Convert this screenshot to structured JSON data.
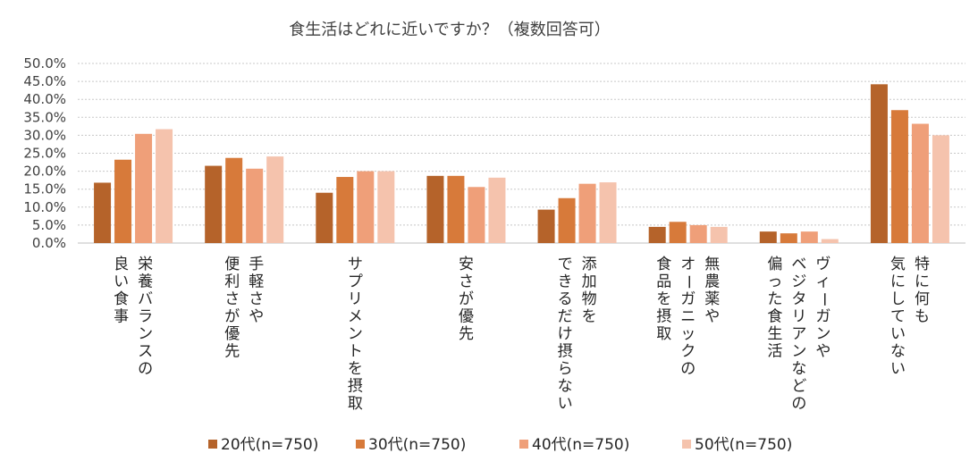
{
  "chart_data": {
    "type": "bar",
    "title": "食生活はどれに近いですか？（複数回答可）",
    "xlabel": "",
    "ylabel": "",
    "ylim": [
      0,
      50
    ],
    "yticks": [
      "0.0%",
      "5.0%",
      "10.0%",
      "15.0%",
      "20.0%",
      "25.0%",
      "30.0%",
      "35.0%",
      "40.0%",
      "45.0%",
      "50.0%"
    ],
    "grid": true,
    "legend_position": "bottom",
    "categories": [
      [
        "栄養バランスの",
        "良い食事"
      ],
      [
        "手軽さや",
        "便利さが優先"
      ],
      [
        "サプリメントを摂取"
      ],
      [
        "安さが優先"
      ],
      [
        "添加物を",
        "できるだけ摂らない"
      ],
      [
        "無農薬や",
        "オーガニックの",
        "食品を摂取"
      ],
      [
        "ヴィーガンや",
        "ベジタリアンなどの",
        "偏った食生活"
      ],
      [
        "特に何も",
        "気にしていない"
      ]
    ],
    "series": [
      {
        "name": "20代(n=750)",
        "color": "#b5632a",
        "values": [
          16.8,
          21.5,
          14.0,
          18.7,
          9.3,
          4.5,
          3.2,
          44.2
        ]
      },
      {
        "name": "30代(n=750)",
        "color": "#d77a3a",
        "values": [
          23.2,
          23.7,
          18.4,
          18.7,
          12.5,
          5.9,
          2.7,
          37.0
        ]
      },
      {
        "name": "40代(n=750)",
        "color": "#ef9f79",
        "values": [
          30.4,
          20.7,
          20.0,
          15.6,
          16.5,
          5.0,
          3.2,
          33.2
        ]
      },
      {
        "name": "50代(n=750)",
        "color": "#f5c3ad",
        "values": [
          31.7,
          24.1,
          20.0,
          18.2,
          16.9,
          4.5,
          1.1,
          30.0
        ]
      }
    ]
  }
}
